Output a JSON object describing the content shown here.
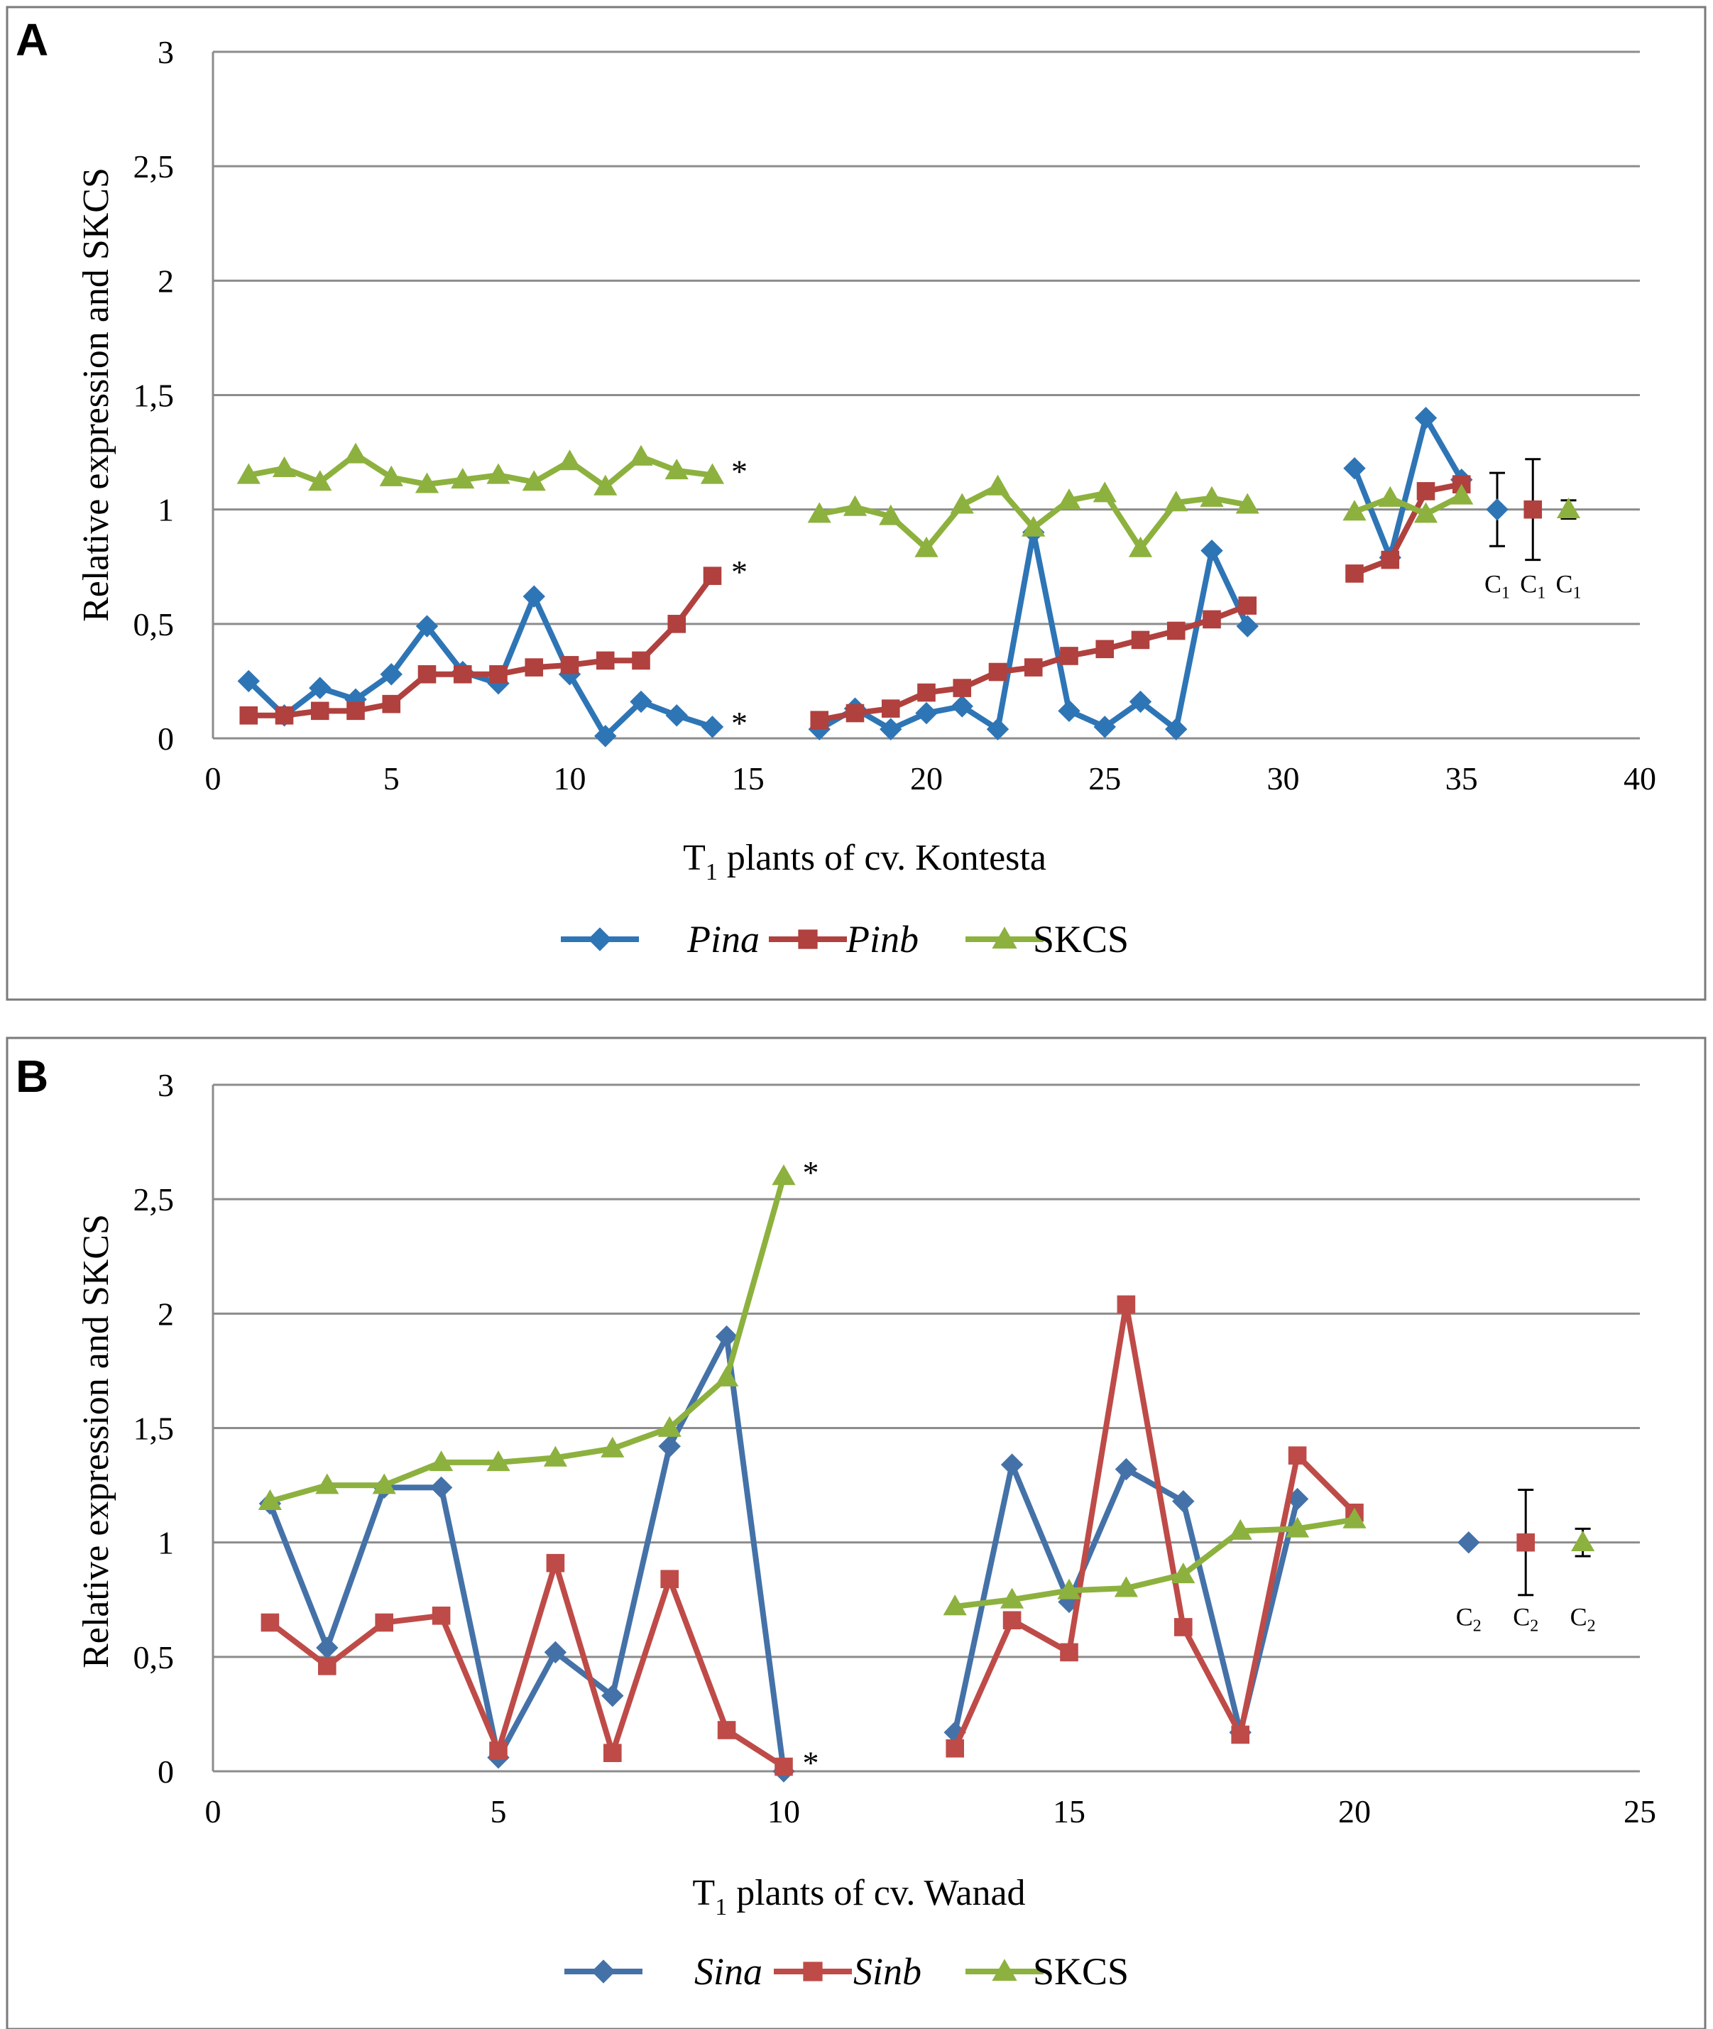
{
  "colors": {
    "blue": "#2E75B6",
    "blue_b": "#4472A8",
    "red": "#B0413E",
    "red_b": "#BE4B48",
    "green": "#8DB13E",
    "grid": "#8c8c8c"
  },
  "chart_data": [
    {
      "panel": "A",
      "type": "line",
      "ylabel": "Relative expression and SKCS",
      "xlabel_main": "T",
      "xlabel_sub": "1",
      "xlabel_rest": " plants of cv. Kontesta",
      "xlim": [
        0,
        40
      ],
      "ylim": [
        0,
        3
      ],
      "xticks": [
        0,
        5,
        10,
        15,
        20,
        25,
        30,
        35,
        40
      ],
      "yticks": [
        0,
        0.5,
        1,
        1.5,
        2,
        2.5,
        3
      ],
      "ytick_labels": [
        "0",
        "0,5",
        "1",
        "1,5",
        "2",
        "2,5",
        "3"
      ],
      "grid": true,
      "legend_position": "bottom",
      "series": [
        {
          "name": "Pina",
          "italic": true,
          "marker": "diamond",
          "color": "#2E75B6",
          "segments": [
            [
              [
                1,
                0.25
              ],
              [
                2,
                0.1
              ],
              [
                3,
                0.22
              ],
              [
                4,
                0.17
              ],
              [
                5,
                0.28
              ],
              [
                6,
                0.49
              ],
              [
                7,
                0.29
              ],
              [
                8,
                0.24
              ],
              [
                9,
                0.62
              ],
              [
                10,
                0.28
              ],
              [
                11,
                0.01
              ],
              [
                12,
                0.16
              ],
              [
                13,
                0.1
              ],
              [
                14,
                0.05
              ]
            ],
            [
              [
                17,
                0.04
              ],
              [
                18,
                0.13
              ],
              [
                19,
                0.04
              ],
              [
                20,
                0.11
              ],
              [
                21,
                0.14
              ],
              [
                22,
                0.04
              ],
              [
                23,
                0.9
              ],
              [
                24,
                0.12
              ],
              [
                25,
                0.05
              ],
              [
                26,
                0.16
              ],
              [
                27,
                0.04
              ],
              [
                28,
                0.82
              ],
              [
                29,
                0.49
              ]
            ],
            [
              [
                32,
                1.18
              ],
              [
                33,
                0.79
              ],
              [
                34,
                1.4
              ],
              [
                35,
                1.13
              ]
            ]
          ],
          "control": {
            "x": 36,
            "y": 1.0,
            "err": 0.16,
            "label": "C",
            "sub": "1"
          }
        },
        {
          "name": "Pinb",
          "italic": true,
          "marker": "square",
          "color": "#B0413E",
          "segments": [
            [
              [
                1,
                0.1
              ],
              [
                2,
                0.1
              ],
              [
                3,
                0.12
              ],
              [
                4,
                0.12
              ],
              [
                5,
                0.15
              ],
              [
                6,
                0.28
              ],
              [
                7,
                0.28
              ],
              [
                8,
                0.28
              ],
              [
                9,
                0.31
              ],
              [
                10,
                0.32
              ],
              [
                11,
                0.34
              ],
              [
                12,
                0.34
              ],
              [
                13,
                0.5
              ],
              [
                14,
                0.71
              ]
            ],
            [
              [
                17,
                0.08
              ],
              [
                18,
                0.11
              ],
              [
                19,
                0.13
              ],
              [
                20,
                0.2
              ],
              [
                21,
                0.22
              ],
              [
                22,
                0.29
              ],
              [
                23,
                0.31
              ],
              [
                24,
                0.36
              ],
              [
                25,
                0.39
              ],
              [
                26,
                0.43
              ],
              [
                27,
                0.47
              ],
              [
                28,
                0.52
              ],
              [
                29,
                0.58
              ]
            ],
            [
              [
                32,
                0.72
              ],
              [
                33,
                0.78
              ],
              [
                34,
                1.08
              ],
              [
                35,
                1.11
              ]
            ]
          ],
          "control": {
            "x": 37,
            "y": 1.0,
            "err": 0.22,
            "label": "C",
            "sub": "1"
          }
        },
        {
          "name": "SKCS",
          "italic": false,
          "marker": "triangle",
          "color": "#8DB13E",
          "segments": [
            [
              [
                1,
                1.15
              ],
              [
                2,
                1.18
              ],
              [
                3,
                1.12
              ],
              [
                4,
                1.24
              ],
              [
                5,
                1.14
              ],
              [
                6,
                1.11
              ],
              [
                7,
                1.13
              ],
              [
                8,
                1.15
              ],
              [
                9,
                1.12
              ],
              [
                10,
                1.21
              ],
              [
                11,
                1.1
              ],
              [
                12,
                1.23
              ],
              [
                13,
                1.17
              ],
              [
                14,
                1.15
              ]
            ],
            [
              [
                17,
                0.98
              ],
              [
                18,
                1.01
              ],
              [
                19,
                0.97
              ],
              [
                20,
                0.83
              ],
              [
                21,
                1.02
              ],
              [
                22,
                1.1
              ],
              [
                23,
                0.92
              ],
              [
                24,
                1.04
              ],
              [
                25,
                1.07
              ],
              [
                26,
                0.83
              ],
              [
                27,
                1.03
              ],
              [
                28,
                1.05
              ],
              [
                29,
                1.02
              ]
            ],
            [
              [
                32,
                0.99
              ],
              [
                33,
                1.05
              ],
              [
                34,
                0.98
              ],
              [
                35,
                1.06
              ]
            ]
          ],
          "control": {
            "x": 38,
            "y": 1.0,
            "err": 0.04,
            "label": "C",
            "sub": "1"
          }
        }
      ],
      "annotations": [
        {
          "text": "*",
          "x": 14,
          "y": 1.15
        },
        {
          "text": "*",
          "x": 14,
          "y": 0.71
        },
        {
          "text": "*",
          "x": 14,
          "y": 0.05
        }
      ]
    },
    {
      "panel": "B",
      "type": "line",
      "ylabel": "Relative expression and SKCS",
      "xlabel_main": "T",
      "xlabel_sub": "1",
      "xlabel_rest": " plants of cv. Wanad",
      "xlim": [
        0,
        25
      ],
      "ylim": [
        0,
        3
      ],
      "xticks": [
        0,
        5,
        10,
        15,
        20,
        25
      ],
      "yticks": [
        0,
        0.5,
        1,
        1.5,
        2,
        2.5,
        3
      ],
      "ytick_labels": [
        "0",
        "0,5",
        "1",
        "1,5",
        "2",
        "2,5",
        "3"
      ],
      "grid": true,
      "legend_position": "bottom",
      "series": [
        {
          "name": "Sina",
          "italic": true,
          "marker": "diamond",
          "color": "#4472A8",
          "segments": [
            [
              [
                1,
                1.17
              ],
              [
                2,
                0.54
              ],
              [
                3,
                1.24
              ],
              [
                4,
                1.24
              ],
              [
                5,
                0.06
              ],
              [
                6,
                0.52
              ],
              [
                7,
                0.33
              ],
              [
                8,
                1.42
              ],
              [
                9,
                1.9
              ],
              [
                10,
                0.0
              ]
            ],
            [
              [
                13,
                0.17
              ],
              [
                14,
                1.34
              ],
              [
                15,
                0.74
              ],
              [
                16,
                1.32
              ],
              [
                17,
                1.18
              ],
              [
                18,
                0.17
              ],
              [
                19,
                1.19
              ]
            ]
          ],
          "control": {
            "x": 22,
            "y": 1.0,
            "err": 0,
            "label": "C",
            "sub": "2"
          }
        },
        {
          "name": "Sinb",
          "italic": true,
          "marker": "square",
          "color": "#BE4B48",
          "segments": [
            [
              [
                1,
                0.65
              ],
              [
                2,
                0.46
              ],
              [
                3,
                0.65
              ],
              [
                4,
                0.68
              ],
              [
                5,
                0.09
              ],
              [
                6,
                0.91
              ],
              [
                7,
                0.08
              ],
              [
                8,
                0.84
              ],
              [
                9,
                0.18
              ],
              [
                10,
                0.02
              ]
            ],
            [
              [
                13,
                0.1
              ],
              [
                14,
                0.66
              ],
              [
                15,
                0.52
              ],
              [
                16,
                2.04
              ],
              [
                17,
                0.63
              ],
              [
                18,
                0.16
              ],
              [
                19,
                1.38
              ],
              [
                20,
                1.13
              ]
            ]
          ],
          "control": {
            "x": 23,
            "y": 1.0,
            "err": 0.23,
            "label": "C",
            "sub": "2"
          }
        },
        {
          "name": "SKCS",
          "italic": false,
          "marker": "triangle",
          "color": "#8DB13E",
          "segments": [
            [
              [
                1,
                1.18
              ],
              [
                2,
                1.25
              ],
              [
                3,
                1.25
              ],
              [
                4,
                1.35
              ],
              [
                5,
                1.35
              ],
              [
                6,
                1.37
              ],
              [
                7,
                1.41
              ],
              [
                8,
                1.5
              ],
              [
                9,
                1.72
              ],
              [
                10,
                2.6
              ]
            ],
            [
              [
                13,
                0.72
              ],
              [
                14,
                0.75
              ],
              [
                15,
                0.79
              ],
              [
                16,
                0.8
              ],
              [
                17,
                0.86
              ],
              [
                18,
                1.05
              ],
              [
                19,
                1.06
              ],
              [
                20,
                1.1
              ]
            ]
          ],
          "control": {
            "x": 24,
            "y": 1.0,
            "err": 0.06,
            "label": "C",
            "sub": "2"
          }
        }
      ],
      "annotations": [
        {
          "text": "*",
          "x": 10,
          "y": 2.6
        },
        {
          "text": "*",
          "x": 10,
          "y": 0.02
        }
      ]
    }
  ]
}
